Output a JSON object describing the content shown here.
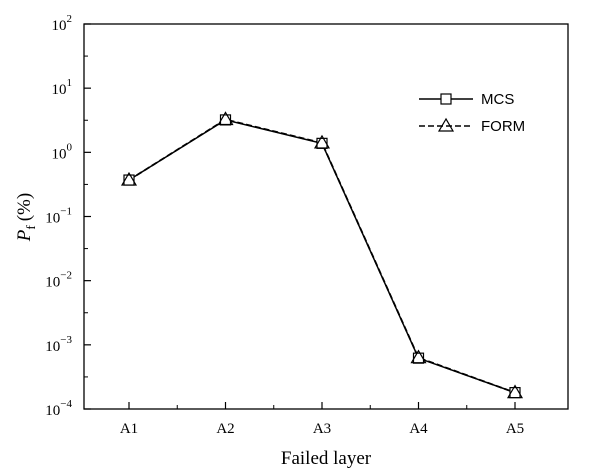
{
  "chart_data": {
    "type": "line",
    "x_title": "Failed layer",
    "y_title_main": "P",
    "y_title_sub": "f",
    "y_title_unit": "(%)",
    "y_scale": "log",
    "ylim": [
      0.0001,
      100
    ],
    "grid": false,
    "legend_position": "top-right",
    "categories": [
      "A1",
      "A2",
      "A3",
      "A4",
      "A5"
    ],
    "y_ticks": [
      {
        "value": 0.0001,
        "base": "10",
        "exp": "−4"
      },
      {
        "value": 0.001,
        "base": "10",
        "exp": "−3"
      },
      {
        "value": 0.01,
        "base": "10",
        "exp": "−2"
      },
      {
        "value": 0.1,
        "base": "10",
        "exp": "−1"
      },
      {
        "value": 1,
        "base": "10",
        "exp": "0"
      },
      {
        "value": 10,
        "base": "10",
        "exp": "1"
      },
      {
        "value": 100,
        "base": "10",
        "exp": "2"
      }
    ],
    "series": [
      {
        "name": "MCS",
        "marker": "square",
        "line": "solid",
        "values": [
          0.37,
          3.2,
          1.38,
          0.00062,
          0.00018
        ]
      },
      {
        "name": "FORM",
        "marker": "triangle",
        "line": "dashed",
        "values": [
          0.37,
          3.25,
          1.4,
          0.00063,
          0.00018
        ]
      }
    ]
  }
}
